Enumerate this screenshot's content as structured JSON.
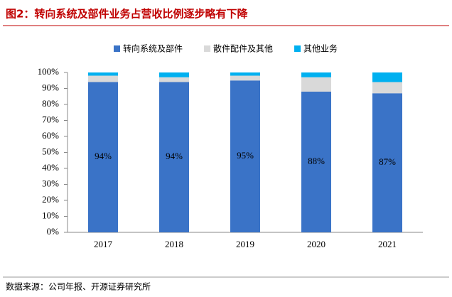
{
  "chart_data": {
    "type": "stacked_bar",
    "title": "图2：转向系统及部件业务占营收比例逐步略有下降",
    "source": "数据来源：公司年报、开源证券研究所",
    "categories": [
      "2017",
      "2018",
      "2019",
      "2020",
      "2021"
    ],
    "series": [
      {
        "name": "转向系统及部件",
        "color": "#3a73c7",
        "values": [
          94,
          94,
          95,
          88,
          87
        ],
        "value_labels": [
          "94%",
          "94%",
          "95%",
          "88%",
          "87%"
        ]
      },
      {
        "name": "散件配件及其他",
        "color": "#d9d9d9",
        "values": [
          4,
          3,
          3,
          9,
          7
        ]
      },
      {
        "name": "其他业务",
        "color": "#00b0f0",
        "values": [
          2,
          3,
          2,
          3,
          6
        ]
      }
    ],
    "ylim": [
      0,
      100
    ],
    "yticks": [
      {
        "value": 0,
        "label": "0%"
      },
      {
        "value": 10,
        "label": "10%"
      },
      {
        "value": 20,
        "label": "20%"
      },
      {
        "value": 30,
        "label": "30%"
      },
      {
        "value": 40,
        "label": "40%"
      },
      {
        "value": 50,
        "label": "50%"
      },
      {
        "value": 60,
        "label": "60%"
      },
      {
        "value": 70,
        "label": "70%"
      },
      {
        "value": 80,
        "label": "80%"
      },
      {
        "value": 90,
        "label": "90%"
      },
      {
        "value": 100,
        "label": "100%"
      }
    ],
    "grid": false
  }
}
